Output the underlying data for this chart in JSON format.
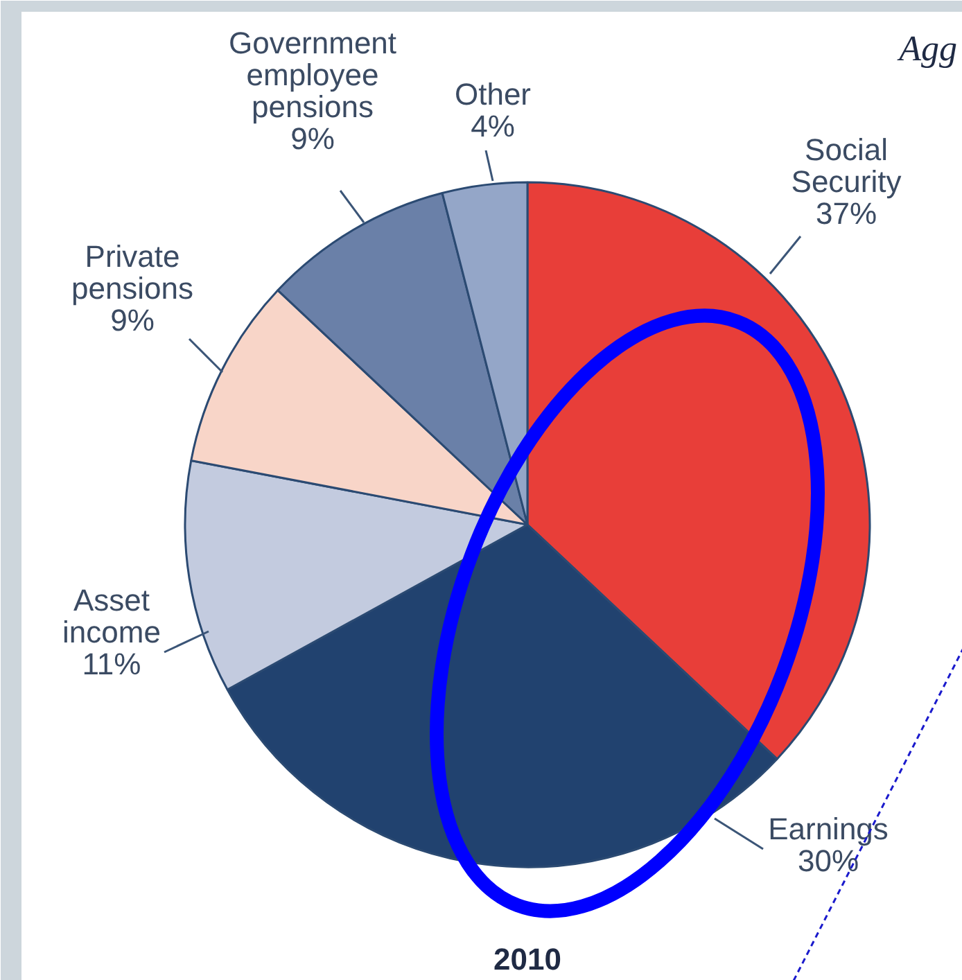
{
  "chart_data": {
    "type": "pie",
    "categories": [
      "Social Security",
      "Earnings",
      "Asset income",
      "Private pensions",
      "Government employee pensions",
      "Other"
    ],
    "values": [
      37,
      30,
      11,
      9,
      9,
      4
    ],
    "colors": [
      "#e83e39",
      "#21426f",
      "#c3cbdf",
      "#f8d5c8",
      "#6a80a8",
      "#94a6c8"
    ],
    "value_labels": [
      "37%",
      "30%",
      "11%",
      "9%",
      "9%",
      "4%"
    ],
    "annotations": [
      "Agg",
      "2010"
    ]
  }
}
